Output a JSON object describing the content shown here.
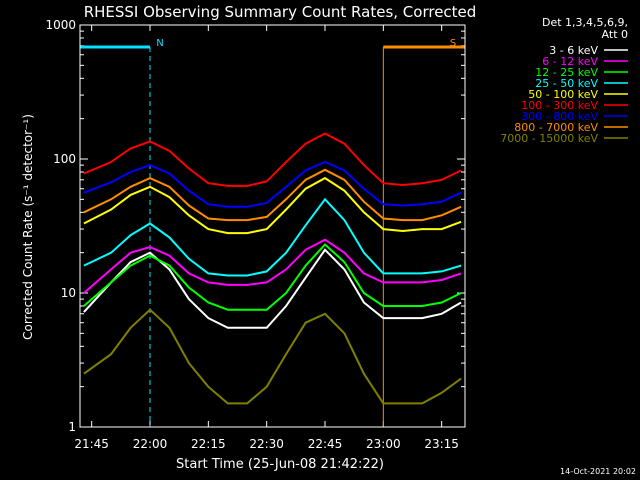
{
  "chart_data": {
    "type": "line",
    "title": "RHESSI Observing Summary Count Rates, Corrected",
    "xlabel": "Start Time (25-Jun-08 21:42:22)",
    "ylabel": "Corrected Count Rate (s⁻¹ detector⁻¹)",
    "y_scale": "log",
    "ylim": [
      1,
      1000
    ],
    "xlim_minutes": [
      "21:42",
      "23:21"
    ],
    "x_ticks": [
      "21:45",
      "22:00",
      "22:15",
      "22:30",
      "22:45",
      "23:00",
      "23:15"
    ],
    "y_ticks": [
      "1",
      "10",
      "100",
      "1000"
    ],
    "timestamp": "14-Oct-2021 20:02",
    "legend": {
      "header1": "Det 1,3,4,5,6,9,",
      "header2": "Att 0",
      "placement": "top-right outside"
    },
    "flags": [
      {
        "label": "N",
        "color": "#00e5ff",
        "start": "21:42",
        "end": "22:00"
      },
      {
        "label": "S",
        "color": "#ff8c00",
        "start": "23:00",
        "end": "23:21"
      }
    ],
    "x": [
      "21:43",
      "21:50",
      "21:55",
      "22:00",
      "22:05",
      "22:10",
      "22:15",
      "22:20",
      "22:25",
      "22:30",
      "22:35",
      "22:40",
      "22:45",
      "22:50",
      "22:55",
      "23:00",
      "23:05",
      "23:10",
      "23:15",
      "23:20"
    ],
    "series": [
      {
        "name": "3 - 6 keV",
        "color": "#ffffff",
        "values": [
          7.2,
          12,
          17,
          20,
          15,
          9,
          6.5,
          5.5,
          5.5,
          5.5,
          8,
          13,
          21,
          15,
          8.5,
          6.5,
          6.5,
          6.5,
          7,
          8.5
        ]
      },
      {
        "name": "6 - 12 keV",
        "color": "#ff00ff",
        "values": [
          10,
          15,
          20,
          22,
          19,
          14,
          12,
          11.5,
          11.5,
          12,
          15,
          21,
          25,
          20,
          14,
          12,
          12,
          12,
          12.5,
          14
        ]
      },
      {
        "name": "12 - 25 keV",
        "color": "#00ff00",
        "values": [
          8,
          12,
          16,
          19,
          16,
          11,
          8.5,
          7.5,
          7.5,
          7.5,
          10,
          16,
          23,
          17,
          10,
          8,
          8,
          8,
          8.5,
          10
        ]
      },
      {
        "name": "25 - 50 keV",
        "color": "#00ffff",
        "values": [
          16,
          20,
          27,
          33,
          26,
          18,
          14,
          13.5,
          13.5,
          14.5,
          20,
          32,
          50,
          35,
          20,
          14,
          14,
          14,
          14.5,
          16
        ]
      },
      {
        "name": "50 - 100 keV",
        "color": "#ffff00",
        "values": [
          33,
          42,
          54,
          62,
          52,
          38,
          30,
          28,
          28,
          30,
          42,
          60,
          72,
          58,
          40,
          30,
          29,
          30,
          30,
          34
        ]
      },
      {
        "name": "100 - 300 keV",
        "color": "#ff0000",
        "values": [
          78,
          95,
          120,
          135,
          115,
          85,
          66,
          63,
          63,
          68,
          95,
          130,
          155,
          130,
          90,
          66,
          64,
          66,
          70,
          82
        ]
      },
      {
        "name": "300 - 800 keV",
        "color": "#0000ff",
        "values": [
          56,
          67,
          80,
          90,
          78,
          58,
          46,
          44,
          44,
          47,
          62,
          82,
          95,
          82,
          60,
          46,
          45,
          46,
          48,
          56
        ]
      },
      {
        "name": "800 - 7000 keV",
        "color": "#ff8c00",
        "values": [
          40,
          50,
          62,
          72,
          62,
          45,
          36,
          35,
          35,
          37,
          50,
          70,
          83,
          70,
          48,
          36,
          35,
          35,
          38,
          44
        ]
      },
      {
        "name": "7000 - 15000 keV",
        "color": "#808000",
        "values": [
          2.5,
          3.5,
          5.5,
          7.5,
          5.5,
          3,
          2,
          1.5,
          1.5,
          2,
          3.5,
          6,
          7,
          5,
          2.5,
          1.5,
          1.5,
          1.5,
          1.8,
          2.3
        ]
      }
    ]
  }
}
